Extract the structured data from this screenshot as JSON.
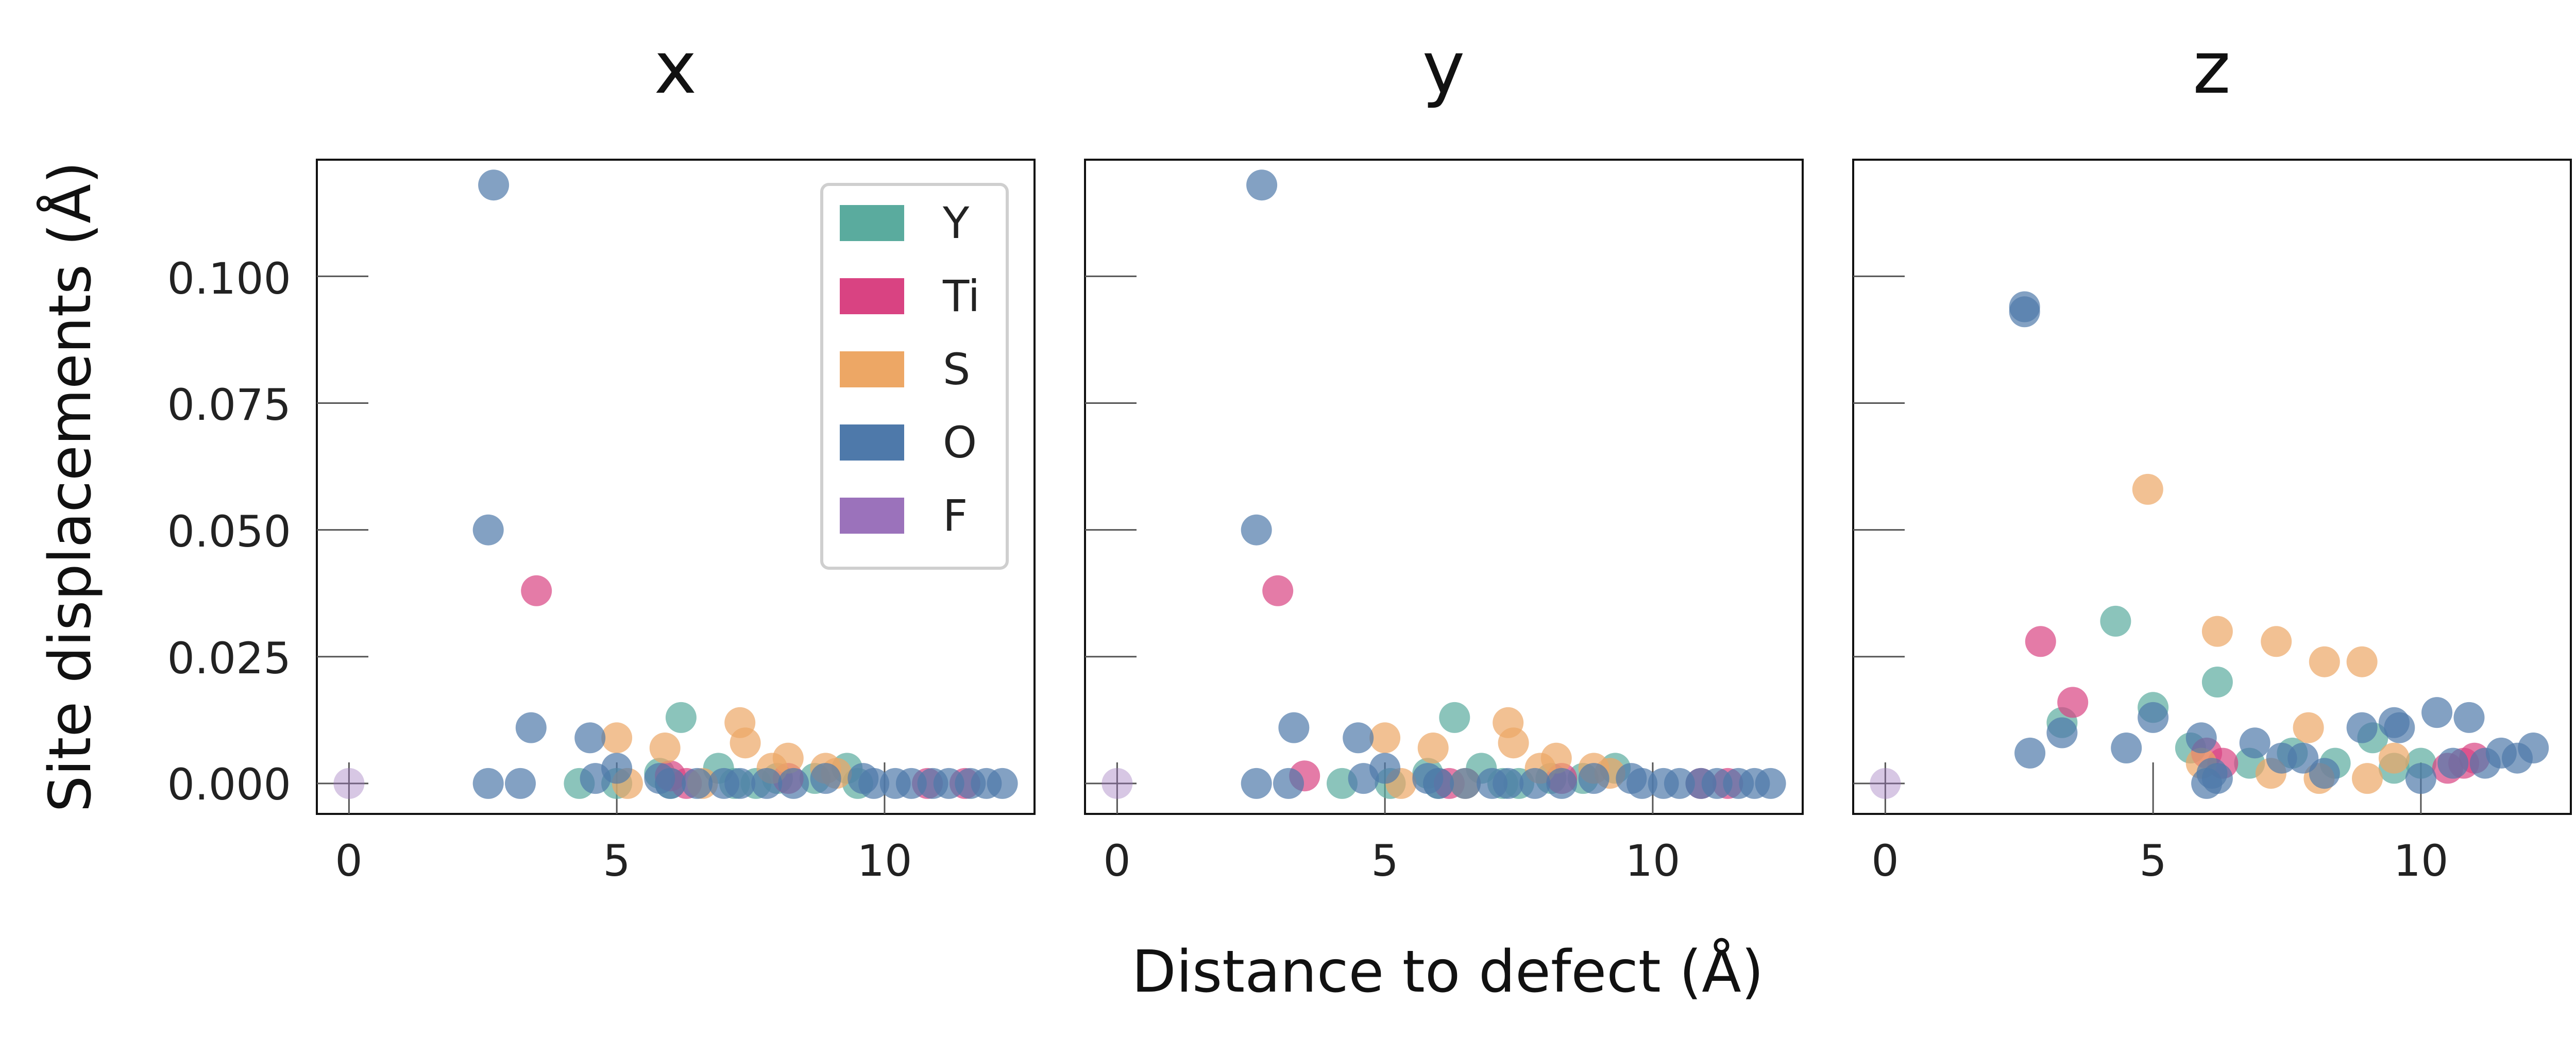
{
  "colors": {
    "Y": "#5aab9e",
    "Ti": "#d94382",
    "S": "#eda765",
    "O": "#4e79aa",
    "F": "#9b72bb"
  },
  "chart_data": {
    "type": "scatter",
    "xlabel": "Distance to defect (Å)",
    "ylabel": "Site displacements (Å)",
    "xlim": [
      -0.6,
      12.8
    ],
    "ylim": [
      -0.006,
      0.123
    ],
    "xticks": [
      0,
      5,
      10
    ],
    "xtick_labels": [
      "0",
      "5",
      "10"
    ],
    "yticks": [
      0.0,
      0.025,
      0.05,
      0.075,
      0.1
    ],
    "ytick_labels": [
      "0.000",
      "0.025",
      "0.050",
      "0.075",
      "0.100"
    ],
    "legend": {
      "placement": "upper-right of first panel",
      "entries": [
        "Y",
        "Ti",
        "S",
        "O",
        "F"
      ]
    },
    "panels": [
      {
        "title": "x",
        "series": [
          {
            "name": "Y",
            "x": [
              4.3,
              5.8,
              6.2,
              6.9,
              7.6,
              8.7,
              9.3,
              5.0,
              6.0,
              7.2,
              8.0,
              9.5
            ],
            "y": [
              0.0,
              0.002,
              0.013,
              0.003,
              0.0,
              0.001,
              0.003,
              0.0,
              0.0,
              0.0,
              0.001,
              0.0
            ]
          },
          {
            "name": "Ti",
            "x": [
              3.5,
              6.0,
              6.3,
              8.2,
              10.8,
              11.5
            ],
            "y": [
              0.038,
              0.0015,
              0.0,
              0.001,
              0.0,
              0.0
            ]
          },
          {
            "name": "S",
            "x": [
              5.0,
              5.9,
              7.3,
              7.4,
              7.9,
              8.2,
              8.9,
              9.1,
              5.2,
              6.6
            ],
            "y": [
              0.009,
              0.007,
              0.012,
              0.008,
              0.003,
              0.005,
              0.003,
              0.002,
              0.0,
              0.0
            ]
          },
          {
            "name": "O",
            "x": [
              2.7,
              2.6,
              3.4,
              2.6,
              3.2,
              4.5,
              4.6,
              5.0,
              5.8,
              6.0,
              6.5,
              7.0,
              7.3,
              7.8,
              8.3,
              8.9,
              9.6,
              9.8,
              10.2,
              10.5,
              10.9,
              11.2,
              11.6,
              11.9,
              12.2
            ],
            "y": [
              0.118,
              0.05,
              0.011,
              0.0,
              0.0,
              0.009,
              0.001,
              0.003,
              0.001,
              0.0,
              0.0,
              0.0,
              0.0,
              0.0,
              0.0,
              0.001,
              0.001,
              0.0,
              0.0,
              0.0,
              0.0,
              0.0,
              0.0,
              0.0,
              0.0
            ]
          },
          {
            "name": "F",
            "x": [
              0.0
            ],
            "y": [
              0.0
            ]
          }
        ]
      },
      {
        "title": "y",
        "series": [
          {
            "name": "Y",
            "x": [
              4.2,
              5.8,
              6.3,
              6.8,
              7.5,
              8.7,
              9.3,
              5.1,
              6.0,
              7.2,
              8.1
            ],
            "y": [
              0.0,
              0.002,
              0.013,
              0.003,
              0.0,
              0.001,
              0.003,
              0.0,
              0.0,
              0.0,
              0.001
            ]
          },
          {
            "name": "Ti",
            "x": [
              3.0,
              3.5,
              6.2,
              8.3,
              10.9,
              11.4
            ],
            "y": [
              0.038,
              0.0015,
              0.0,
              0.001,
              0.0,
              0.0
            ]
          },
          {
            "name": "S",
            "x": [
              5.0,
              5.9,
              7.3,
              7.4,
              7.9,
              8.2,
              8.9,
              9.2,
              5.3,
              6.5
            ],
            "y": [
              0.009,
              0.007,
              0.012,
              0.008,
              0.003,
              0.005,
              0.003,
              0.002,
              0.0,
              0.0
            ]
          },
          {
            "name": "O",
            "x": [
              2.7,
              2.6,
              3.3,
              2.6,
              3.2,
              4.5,
              4.6,
              5.0,
              5.8,
              6.0,
              6.5,
              7.0,
              7.3,
              7.8,
              8.3,
              8.9,
              9.6,
              9.8,
              10.2,
              10.5,
              10.9,
              11.2,
              11.6,
              11.9,
              12.2
            ],
            "y": [
              0.118,
              0.05,
              0.011,
              0.0,
              0.0,
              0.009,
              0.001,
              0.003,
              0.001,
              0.0,
              0.0,
              0.0,
              0.0,
              0.0,
              0.0,
              0.001,
              0.001,
              0.0,
              0.0,
              0.0,
              0.0,
              0.0,
              0.0,
              0.0,
              0.0
            ]
          },
          {
            "name": "F",
            "x": [
              0.0
            ],
            "y": [
              0.0
            ]
          }
        ]
      },
      {
        "title": "z",
        "series": [
          {
            "name": "Y",
            "x": [
              4.3,
              5.0,
              5.7,
              6.2,
              6.8,
              7.6,
              8.4,
              9.1,
              9.5,
              10.0,
              3.3
            ],
            "y": [
              0.032,
              0.015,
              0.007,
              0.02,
              0.004,
              0.006,
              0.004,
              0.009,
              0.003,
              0.004,
              0.012
            ]
          },
          {
            "name": "Ti",
            "x": [
              2.9,
              3.5,
              6.0,
              6.3,
              10.5,
              10.8,
              11.0
            ],
            "y": [
              0.028,
              0.016,
              0.006,
              0.004,
              0.003,
              0.004,
              0.005
            ]
          },
          {
            "name": "S",
            "x": [
              4.9,
              6.2,
              7.3,
              8.2,
              8.9,
              5.9,
              7.2,
              7.9,
              8.1,
              9.0,
              9.5
            ],
            "y": [
              0.058,
              0.03,
              0.028,
              0.024,
              0.024,
              0.004,
              0.002,
              0.011,
              0.001,
              0.001,
              0.005
            ]
          },
          {
            "name": "O",
            "x": [
              2.6,
              2.6,
              3.3,
              2.7,
              4.5,
              5.0,
              5.9,
              6.0,
              6.2,
              6.9,
              7.4,
              7.8,
              8.9,
              9.5,
              9.6,
              10.0,
              10.3,
              10.6,
              10.9,
              11.2,
              11.5,
              11.8,
              12.1,
              6.1,
              8.2
            ],
            "y": [
              0.094,
              0.093,
              0.01,
              0.006,
              0.007,
              0.013,
              0.009,
              0.0,
              0.001,
              0.008,
              0.005,
              0.005,
              0.011,
              0.012,
              0.011,
              0.001,
              0.014,
              0.004,
              0.013,
              0.004,
              0.006,
              0.005,
              0.007,
              0.002,
              0.002
            ]
          },
          {
            "name": "F",
            "x": [
              0.0
            ],
            "y": [
              0.0
            ]
          }
        ]
      }
    ]
  }
}
